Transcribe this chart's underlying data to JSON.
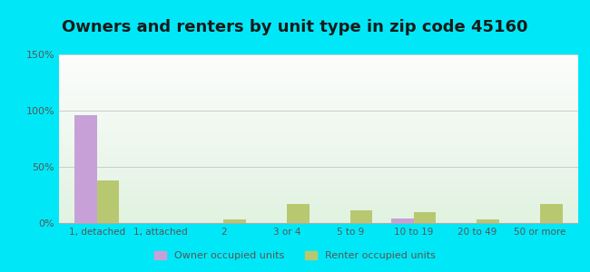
{
  "title": "Owners and renters by unit type in zip code 45160",
  "categories": [
    "1, detached",
    "1, attached",
    "2",
    "3 or 4",
    "5 to 9",
    "10 to 19",
    "20 to 49",
    "50 or more"
  ],
  "owner_values": [
    96,
    0,
    0,
    0,
    0,
    4,
    0,
    0
  ],
  "renter_values": [
    38,
    0,
    3,
    17,
    11,
    10,
    3,
    17
  ],
  "owner_color": "#c8a0d8",
  "renter_color": "#b8c870",
  "background_outer": "#00e8f8",
  "ylim": [
    0,
    150
  ],
  "yticks": [
    0,
    50,
    100,
    150
  ],
  "ytick_labels": [
    "0%",
    "50%",
    "100%",
    "150%"
  ],
  "title_fontsize": 13,
  "bar_width": 0.35,
  "legend_owner": "Owner occupied units",
  "legend_renter": "Renter occupied units",
  "grid_color": "#cccccc",
  "tick_color": "#555555",
  "title_color": "#1a1a1a"
}
